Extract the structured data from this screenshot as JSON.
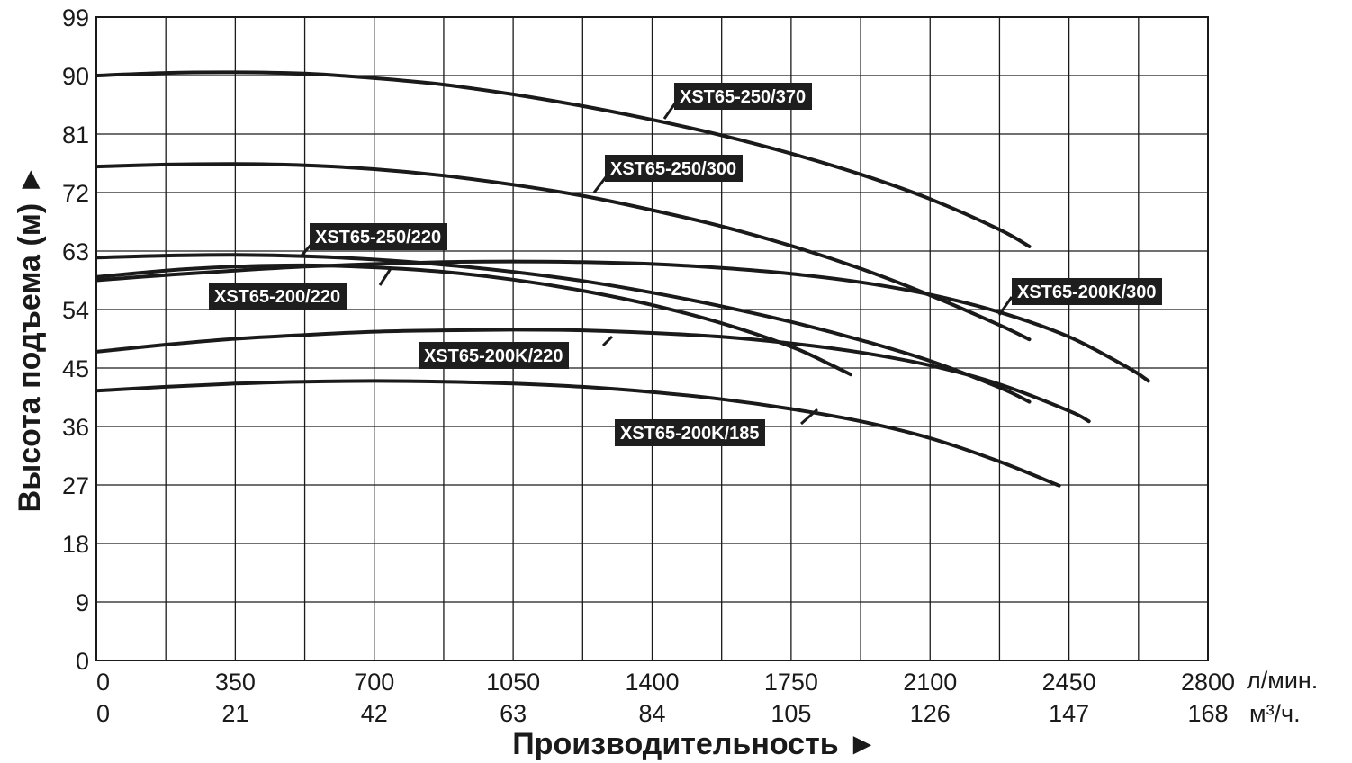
{
  "chart_data": {
    "type": "line",
    "xlabel": "Производительность ►",
    "ylabel": "Высота подъема (м) ►",
    "x_unit": "л/мин.",
    "x2_unit": "м³/ч.",
    "xlim": [
      0,
      2800
    ],
    "ylim": [
      0,
      99
    ],
    "x_ticks": [
      0,
      350,
      700,
      1050,
      1400,
      1750,
      2100,
      2450,
      2800
    ],
    "x2_ticks": [
      0,
      21,
      42,
      63,
      84,
      105,
      126,
      147,
      168
    ],
    "y_ticks": [
      0,
      9,
      18,
      27,
      36,
      45,
      54,
      63,
      72,
      81,
      90,
      99
    ],
    "grid": true,
    "series": [
      {
        "name": "XST65-250/370",
        "x": [
          0,
          175,
          350,
          525,
          700,
          875,
          1050,
          1225,
          1400,
          1575,
          1750,
          1925,
          2100,
          2275,
          2350
        ],
        "y": [
          90,
          90.4,
          90.5,
          90.3,
          89.6,
          88.6,
          87.1,
          85.3,
          83.2,
          80.8,
          78.0,
          74.8,
          71.0,
          66.3,
          63.7
        ]
      },
      {
        "name": "XST65-250/300",
        "x": [
          0,
          175,
          350,
          525,
          700,
          875,
          1050,
          1225,
          1400,
          1575,
          1750,
          1925,
          2100,
          2275,
          2350
        ],
        "y": [
          76,
          76.3,
          76.4,
          76.2,
          75.6,
          74.6,
          73.2,
          71.5,
          69.3,
          66.8,
          63.8,
          60.3,
          56.2,
          51.6,
          49.4
        ]
      },
      {
        "name": "XST65-250/220",
        "x": [
          0,
          175,
          350,
          525,
          700,
          875,
          1050,
          1225,
          1400,
          1575,
          1750,
          1925,
          2100,
          2275,
          2350
        ],
        "y": [
          62,
          62.3,
          62.4,
          62.2,
          61.7,
          60.9,
          59.8,
          58.4,
          56.6,
          54.5,
          52.1,
          49.3,
          46.1,
          42.0,
          39.8
        ]
      },
      {
        "name": "XST65-200/220",
        "x": [
          0,
          175,
          350,
          525,
          700,
          875,
          1050,
          1225,
          1400,
          1575,
          1750,
          1850,
          1900
        ],
        "y": [
          59,
          60.0,
          60.6,
          60.8,
          60.5,
          59.8,
          58.6,
          56.9,
          54.7,
          51.9,
          48.3,
          45.5,
          44.0
        ]
      },
      {
        "name": "XST65-200K/300",
        "x": [
          0,
          175,
          350,
          525,
          700,
          875,
          1050,
          1225,
          1400,
          1575,
          1750,
          1925,
          2100,
          2275,
          2450,
          2600,
          2650
        ],
        "y": [
          58.5,
          59.3,
          60.0,
          60.6,
          61.0,
          61.3,
          61.4,
          61.3,
          61.0,
          60.4,
          59.5,
          58.2,
          56.3,
          53.6,
          49.8,
          45.0,
          43.0
        ]
      },
      {
        "name": "XST65-200K/220",
        "x": [
          0,
          175,
          350,
          525,
          700,
          875,
          1050,
          1225,
          1400,
          1575,
          1750,
          1925,
          2100,
          2275,
          2450,
          2500
        ],
        "y": [
          47.5,
          48.6,
          49.5,
          50.1,
          50.6,
          50.8,
          50.9,
          50.8,
          50.4,
          49.8,
          48.8,
          47.4,
          45.4,
          42.5,
          38.4,
          36.8
        ]
      },
      {
        "name": "XST65-200K/185",
        "x": [
          0,
          175,
          350,
          525,
          700,
          875,
          1050,
          1225,
          1400,
          1575,
          1750,
          1925,
          2100,
          2275,
          2425
        ],
        "y": [
          41.5,
          42.1,
          42.6,
          42.9,
          43.0,
          42.9,
          42.6,
          42.1,
          41.3,
          40.2,
          38.7,
          36.8,
          34.2,
          30.6,
          26.9
        ]
      }
    ]
  }
}
